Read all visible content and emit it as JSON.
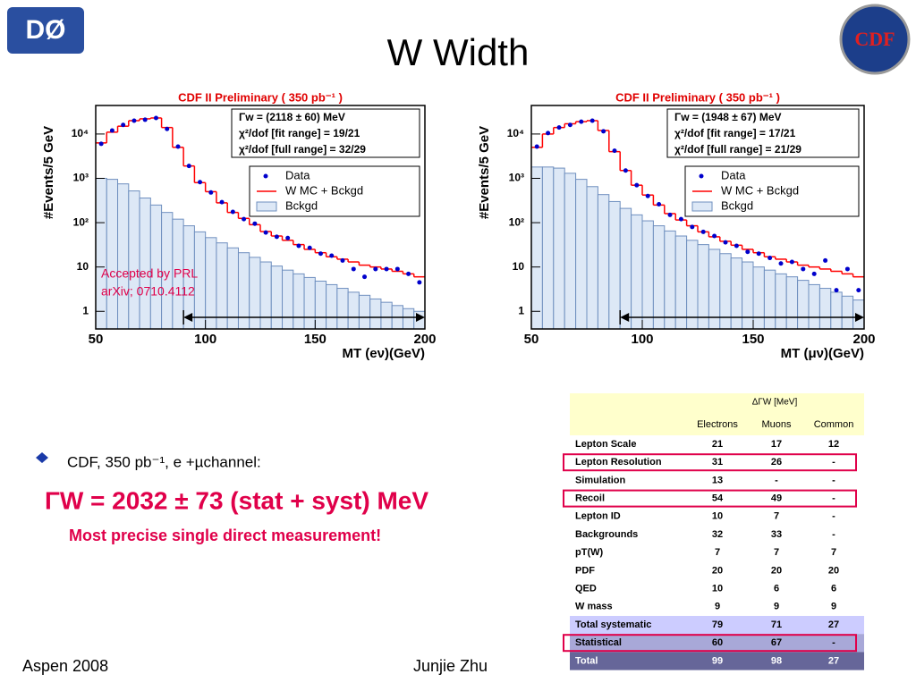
{
  "title": "W Width",
  "logos": {
    "left": "DØ",
    "right": "CDF"
  },
  "plots": [
    {
      "type": "histogram",
      "title": "CDF II Preliminary ( 350 pb⁻¹ )",
      "y_label": "#Events/5 GeV",
      "x_label": "MT (eν)(GeV)",
      "fit_text": [
        "Γw = (2118 ± 60) MeV",
        "χ²/dof [fit range] = 19/21",
        "χ²/dof [full range] = 32/29"
      ],
      "annotations": [
        "Accepted by PRL",
        "arXiv; 0710.4112"
      ],
      "fit_range": [
        90,
        200
      ],
      "log_y": true,
      "xlim": [
        50,
        200
      ],
      "ylim": [
        0.4,
        44000
      ],
      "xticks": [
        50,
        100,
        150,
        200
      ],
      "yticks": [
        1,
        10,
        {
          "value": 100,
          "label": "10²"
        },
        {
          "value": 1000,
          "label": "10³"
        },
        {
          "value": 10000,
          "label": "10⁴"
        }
      ],
      "bins": [
        50,
        55,
        60,
        65,
        70,
        75,
        80,
        85,
        90,
        95,
        100,
        105,
        110,
        115,
        120,
        125,
        130,
        135,
        140,
        145,
        150,
        155,
        160,
        165,
        170,
        175,
        180,
        185,
        190,
        195,
        200
      ],
      "series": [
        {
          "name": "Bckgd",
          "color": "#6f8fbf",
          "values": [
            1000,
            950,
            750,
            520,
            360,
            250,
            170,
            120,
            85,
            62,
            46,
            35,
            27,
            21,
            16.5,
            13,
            10.5,
            8.5,
            7,
            5.8,
            4.8,
            4,
            3.3,
            2.7,
            2.3,
            1.9,
            1.6,
            1.35,
            1.15,
            1
          ]
        },
        {
          "name": "W MC + Bckgd",
          "color": "#ff0000",
          "values": [
            6300,
            11000,
            15000,
            20000,
            22000,
            23000,
            14000,
            5000,
            1900,
            800,
            500,
            280,
            170,
            125,
            90,
            63,
            50,
            40,
            32,
            25,
            21,
            17,
            15,
            13,
            11,
            10,
            9,
            8,
            7,
            6
          ]
        },
        {
          "name": "Data",
          "color": "#0000cc",
          "values": [
            6000,
            12000,
            16000,
            20000,
            21000,
            23000,
            13000,
            5200,
            1900,
            820,
            480,
            290,
            175,
            120,
            95,
            60,
            48,
            45,
            30,
            27,
            20,
            18,
            14,
            9,
            6,
            9,
            9,
            9,
            7,
            4.5
          ]
        }
      ]
    },
    {
      "type": "histogram",
      "title": "CDF II Preliminary ( 350 pb⁻¹ )",
      "y_label": "#Events/5 GeV",
      "x_label": "MT (μν)(GeV)",
      "fit_text": [
        "Γw = (1948 ± 67) MeV",
        "χ²/dof [fit range] = 17/21",
        "χ²/dof [full range] = 21/29"
      ],
      "annotations": [],
      "fit_range": [
        90,
        200
      ],
      "log_y": true,
      "xlim": [
        50,
        200
      ],
      "ylim": [
        0.4,
        44000
      ],
      "xticks": [
        50,
        100,
        150,
        200
      ],
      "yticks": [
        1,
        10,
        {
          "value": 100,
          "label": "10²"
        },
        {
          "value": 1000,
          "label": "10³"
        },
        {
          "value": 10000,
          "label": "10⁴"
        }
      ],
      "bins": [
        50,
        55,
        60,
        65,
        70,
        75,
        80,
        85,
        90,
        95,
        100,
        105,
        110,
        115,
        120,
        125,
        130,
        135,
        140,
        145,
        150,
        155,
        160,
        165,
        170,
        175,
        180,
        185,
        190,
        195,
        200
      ],
      "series": [
        {
          "name": "Bckgd",
          "color": "#6f8fbf",
          "values": [
            1800,
            1800,
            1700,
            1300,
            950,
            650,
            430,
            300,
            210,
            150,
            110,
            85,
            65,
            50,
            40,
            32,
            25,
            20,
            16,
            13,
            10,
            8.5,
            7,
            6,
            5,
            4,
            3.3,
            2.7,
            2.2,
            1.8
          ]
        },
        {
          "name": "W MC + Bckgd",
          "color": "#ff0000",
          "values": [
            5000,
            10000,
            14000,
            17000,
            19000,
            20000,
            12000,
            4000,
            1500,
            700,
            420,
            250,
            160,
            115,
            85,
            62,
            48,
            38,
            31,
            25,
            21,
            17,
            15,
            13,
            11,
            10,
            9,
            8,
            7,
            6
          ]
        },
        {
          "name": "Data",
          "color": "#0000cc",
          "values": [
            5200,
            10500,
            14000,
            16000,
            19000,
            20000,
            11500,
            4200,
            1500,
            700,
            400,
            260,
            150,
            120,
            80,
            62,
            50,
            36,
            30,
            22,
            20,
            16,
            12,
            13,
            9,
            7,
            14,
            3,
            9,
            3
          ]
        }
      ]
    }
  ],
  "bullet": "CDF, 350 pb⁻¹, e +µchannel:",
  "result": "ΓW = 2032 ± 73 (stat + syst) MeV",
  "result_note": "Most precise single direct measurement!",
  "table": {
    "header": "ΔΓW [MeV]",
    "columns": [
      "Electrons",
      "Muons",
      "Common"
    ],
    "rows": [
      [
        "Lepton Scale",
        "21",
        "17",
        "12"
      ],
      [
        "Lepton Resolution",
        "31",
        "26",
        "-"
      ],
      [
        "Simulation",
        "13",
        "-",
        "-"
      ],
      [
        "Recoil",
        "54",
        "49",
        "-"
      ],
      [
        "Lepton ID",
        "10",
        "7",
        "-"
      ],
      [
        "Backgrounds",
        "32",
        "33",
        "-"
      ],
      [
        "pT(W)",
        "7",
        "7",
        "7"
      ],
      [
        "PDF",
        "20",
        "20",
        "20"
      ],
      [
        "QED",
        "10",
        "6",
        "6"
      ],
      [
        "W mass",
        "9",
        "9",
        "9"
      ],
      [
        "Total systematic",
        "79",
        "71",
        "27"
      ],
      [
        "Statistical",
        "60",
        "67",
        "-"
      ],
      [
        "Total",
        "99",
        "98",
        "27"
      ]
    ],
    "highlighted": [
      1,
      3,
      11
    ]
  },
  "footer": {
    "left": "Aspen 2008",
    "center": "Junjie Zhu"
  }
}
